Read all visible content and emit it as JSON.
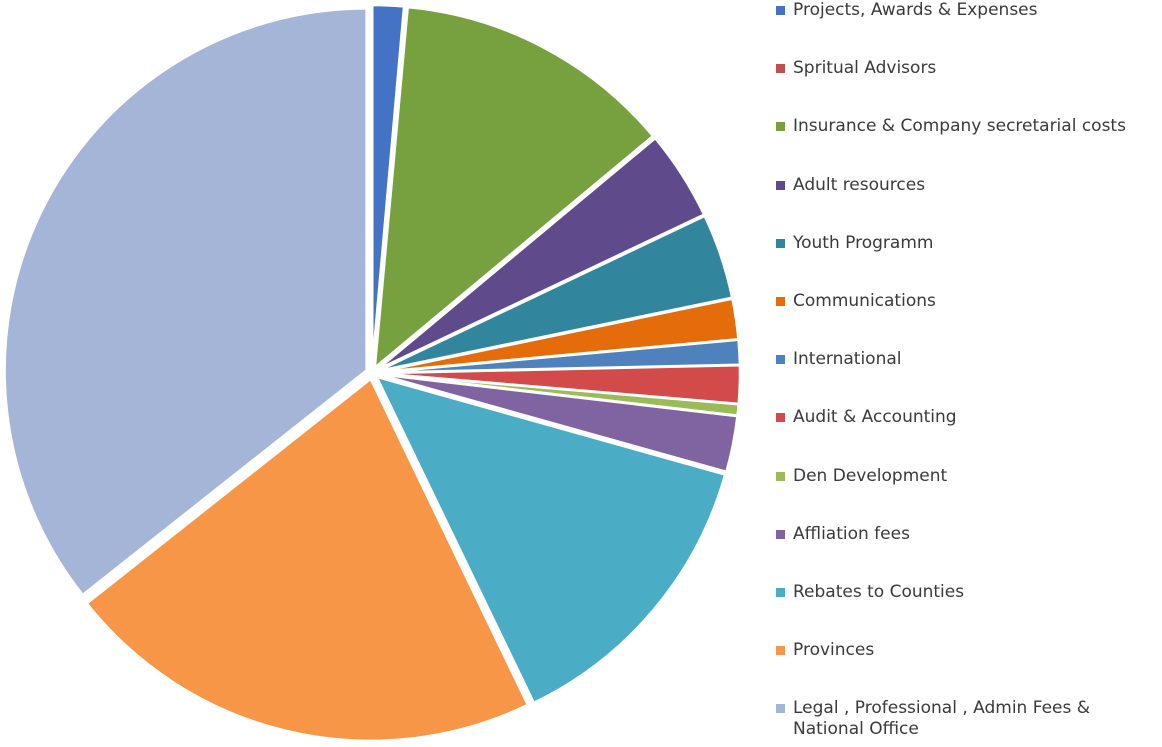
{
  "chart_data": {
    "type": "pie",
    "title": "",
    "slices": [
      {
        "label": "Projects, Awards & Expenses",
        "value": 1.4,
        "color": "#4472c4"
      },
      {
        "label": "Spritual Advisors",
        "value": 0.05,
        "color": "#c0504d"
      },
      {
        "label": "Insurance & Company secretarial costs",
        "value": 12.5,
        "color": "#77a03e"
      },
      {
        "label": "Adult resources",
        "value": 4.0,
        "color": "#5f4b8b"
      },
      {
        "label": "Youth Programm",
        "value": 3.8,
        "color": "#31859c"
      },
      {
        "label": "Communications",
        "value": 1.8,
        "color": "#e46c0a"
      },
      {
        "label": "International",
        "value": 1.1,
        "color": "#4f81bd"
      },
      {
        "label": "Audit & Accounting",
        "value": 1.7,
        "color": "#d24a4a"
      },
      {
        "label": "Den Development",
        "value": 0.5,
        "color": "#9bbb59"
      },
      {
        "label": "Affliation fees",
        "value": 2.5,
        "color": "#8064a2"
      },
      {
        "label": "Rebates to Counties",
        "value": 13.5,
        "color": "#4bacc6"
      },
      {
        "label": "Provinces",
        "value": 21.5,
        "color": "#f79646"
      },
      {
        "label": "Legal , Professional , Admin Fees & \nNational Office",
        "value": 35.65,
        "color": "#a5b5d8"
      }
    ],
    "legend_position": "right"
  }
}
